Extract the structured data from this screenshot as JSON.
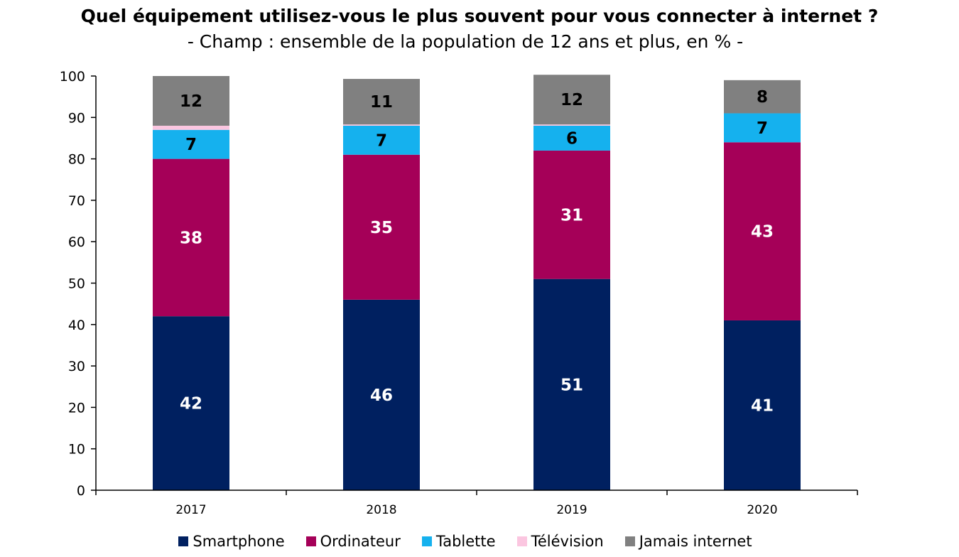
{
  "chart_data": {
    "type": "bar",
    "stacked": true,
    "title": "Quel équipement utilisez-vous le plus souvent pour vous connecter à internet ?",
    "subtitle": "- Champ : ensemble de la population de 12 ans et plus, en % -",
    "categories": [
      "2017",
      "2018",
      "2019",
      "2020"
    ],
    "ylim": [
      0,
      100
    ],
    "yticks": [
      "0",
      "10",
      "20",
      "30",
      "40",
      "50",
      "60",
      "70",
      "80",
      "90",
      "100"
    ],
    "legend_position": "bottom",
    "grid": false,
    "series": [
      {
        "name": "Smartphone",
        "color": "#002060",
        "values": [
          42,
          46,
          51,
          41
        ],
        "labels": [
          "42",
          "46",
          "51",
          "41"
        ],
        "label_color": "#ffffff"
      },
      {
        "name": "Ordinateur",
        "color": "#a50058",
        "values": [
          38,
          35,
          31,
          43
        ],
        "labels": [
          "38",
          "35",
          "31",
          "43"
        ],
        "label_color": "#ffffff"
      },
      {
        "name": "Tablette",
        "color": "#15b1ee",
        "values": [
          7,
          7,
          6,
          7
        ],
        "labels": [
          "7",
          "7",
          "6",
          "7"
        ],
        "label_color": "#000000"
      },
      {
        "name": "Télévision",
        "color": "#fbc6e0",
        "values": [
          1,
          0.3,
          0.3,
          0
        ],
        "labels": [
          "",
          "",
          "",
          ""
        ],
        "label_color": "#000000"
      },
      {
        "name": "Jamais internet",
        "color": "#808080",
        "values": [
          12,
          11,
          12,
          8
        ],
        "labels": [
          "12",
          "11",
          "12",
          "8"
        ],
        "label_color": "#000000"
      }
    ]
  }
}
